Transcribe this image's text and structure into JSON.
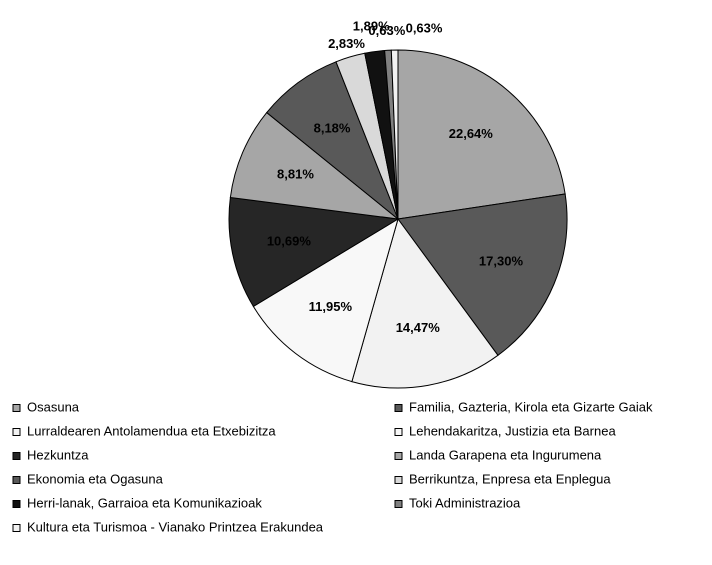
{
  "chart_data": {
    "type": "pie",
    "categories": [
      "Osasuna",
      "Familia, Gazteria, Kirola eta Gizarte Gaiak",
      "Lurraldearen Antolamendua eta Etxebizitza",
      "Lehendakaritza, Justizia eta Barnea",
      "Hezkuntza",
      "Landa Garapena eta Ingurumena",
      "Ekonomia eta Ogasuna",
      "Berrikuntza, Enpresa eta Enplegua",
      "Herri-lanak, Garraioa eta Komunikazioak",
      "Toki Administrazioa",
      "Kultura eta Turismoa - Vianako Printzea Erakundea"
    ],
    "values": [
      22.64,
      17.3,
      14.47,
      11.95,
      10.69,
      8.81,
      8.18,
      2.83,
      1.89,
      0.63,
      0.63
    ],
    "value_labels": [
      "22,64%",
      "17,30%",
      "14,47%",
      "11,95%",
      "10,69%",
      "8,81%",
      "8,18%",
      "2,83%",
      "1,89%",
      "0,63%",
      "0,63%"
    ],
    "colors": [
      "#a6a6a6",
      "#595959",
      "#f2f2f2",
      "#f8f8f8",
      "#262626",
      "#a6a6a6",
      "#595959",
      "#d9d9d9",
      "#111111",
      "#808080",
      "#f2f2f2"
    ],
    "legend": "bottom"
  }
}
